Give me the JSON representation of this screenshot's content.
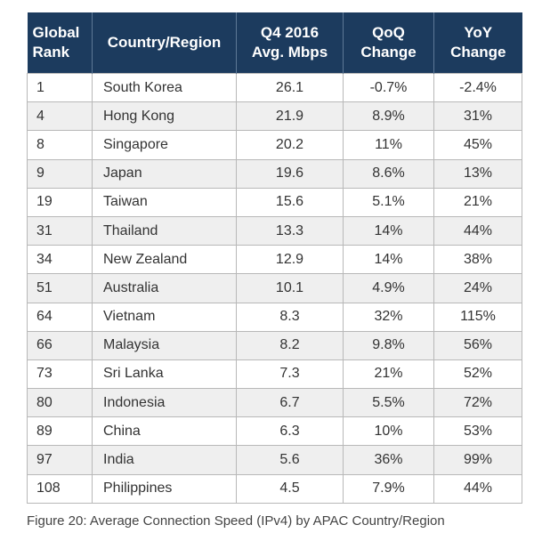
{
  "table": {
    "header": [
      "Global\nRank",
      "Country/Region",
      "Q4 2016\nAvg. Mbps",
      "QoQ\nChange",
      "YoY\nChange"
    ],
    "rows": [
      [
        "1",
        "South Korea",
        "26.1",
        "-0.7%",
        "-2.4%"
      ],
      [
        "4",
        "Hong Kong",
        "21.9",
        "8.9%",
        "31%"
      ],
      [
        "8",
        "Singapore",
        "20.2",
        "11%",
        "45%"
      ],
      [
        "9",
        "Japan",
        "19.6",
        "8.6%",
        "13%"
      ],
      [
        "19",
        "Taiwan",
        "15.6",
        "5.1%",
        "21%"
      ],
      [
        "31",
        "Thailand",
        "13.3",
        "14%",
        "44%"
      ],
      [
        "34",
        "New Zealand",
        "12.9",
        "14%",
        "38%"
      ],
      [
        "51",
        "Australia",
        "10.1",
        "4.9%",
        "24%"
      ],
      [
        "64",
        "Vietnam",
        "8.3",
        "32%",
        "115%"
      ],
      [
        "66",
        "Malaysia",
        "8.2",
        "9.8%",
        "56%"
      ],
      [
        "73",
        "Sri Lanka",
        "7.3",
        "21%",
        "52%"
      ],
      [
        "80",
        "Indonesia",
        "6.7",
        "5.5%",
        "72%"
      ],
      [
        "89",
        "China",
        "6.3",
        "10%",
        "53%"
      ],
      [
        "97",
        "India",
        "5.6",
        "36%",
        "99%"
      ],
      [
        "108",
        "Philippines",
        "4.5",
        "7.9%",
        "44%"
      ]
    ]
  },
  "caption": "Figure 20: Average Connection Speed (IPv4) by APAC Country/Region"
}
